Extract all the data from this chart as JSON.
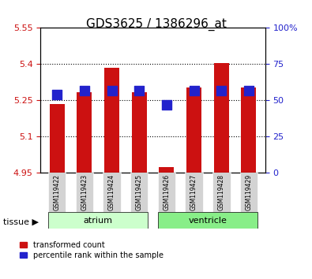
{
  "title": "GDS3625 / 1386296_at",
  "samples": [
    "GSM119422",
    "GSM119423",
    "GSM119424",
    "GSM119425",
    "GSM119426",
    "GSM119427",
    "GSM119428",
    "GSM119429"
  ],
  "red_values": [
    5.235,
    5.285,
    5.385,
    5.285,
    4.975,
    5.305,
    5.405,
    5.305
  ],
  "blue_values": [
    54,
    57,
    57,
    57,
    47,
    57,
    57,
    57
  ],
  "y_min": 4.95,
  "y_max": 5.55,
  "y_ticks_left": [
    4.95,
    5.1,
    5.25,
    5.4,
    5.55
  ],
  "y_ticks_right": [
    0,
    25,
    50,
    75,
    100
  ],
  "grid_lines": [
    5.1,
    5.25,
    5.4
  ],
  "tissues": [
    {
      "label": "atrium",
      "start": 0,
      "end": 3,
      "color": "#ccffcc"
    },
    {
      "label": "ventricle",
      "start": 4,
      "end": 7,
      "color": "#88ee88"
    }
  ],
  "bar_color": "#cc1111",
  "blue_color": "#2222cc",
  "bar_width": 0.55,
  "blue_size": 80,
  "tissue_label": "tissue",
  "legend_red": "transformed count",
  "legend_blue": "percentile rank within the sample",
  "background_color": "#ffffff",
  "plot_bg": "#ffffff",
  "tick_label_color_left": "#cc1111",
  "tick_label_color_right": "#2222cc",
  "x_tick_bg": "#d3d3d3"
}
